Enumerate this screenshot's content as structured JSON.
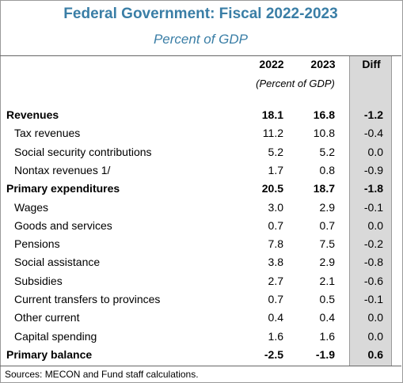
{
  "title": "Federal Government: Fiscal 2022-2023",
  "subtitle": "Percent of GDP",
  "columns": {
    "y2022": "2022",
    "y2023": "2023",
    "diff": "Diff"
  },
  "unit_note": "(Percent of GDP)",
  "rows": [
    {
      "label": "Revenues",
      "v2022": "18.1",
      "v2023": "16.8",
      "diff": "-1.2",
      "bold": true
    },
    {
      "label": "Tax revenues",
      "v2022": "11.2",
      "v2023": "10.8",
      "diff": "-0.4",
      "bold": false
    },
    {
      "label": "Social security contributions",
      "v2022": "5.2",
      "v2023": "5.2",
      "diff": "0.0",
      "bold": false
    },
    {
      "label": "Nontax revenues 1/",
      "v2022": "1.7",
      "v2023": "0.8",
      "diff": "-0.9",
      "bold": false
    },
    {
      "label": "Primary expenditures",
      "v2022": "20.5",
      "v2023": "18.7",
      "diff": "-1.8",
      "bold": true
    },
    {
      "label": "Wages",
      "v2022": "3.0",
      "v2023": "2.9",
      "diff": "-0.1",
      "bold": false
    },
    {
      "label": "Goods and services",
      "v2022": "0.7",
      "v2023": "0.7",
      "diff": "0.0",
      "bold": false
    },
    {
      "label": "Pensions",
      "v2022": "7.8",
      "v2023": "7.5",
      "diff": "-0.2",
      "bold": false
    },
    {
      "label": "Social assistance",
      "v2022": "3.8",
      "v2023": "2.9",
      "diff": "-0.8",
      "bold": false
    },
    {
      "label": "Subsidies",
      "v2022": "2.7",
      "v2023": "2.1",
      "diff": "-0.6",
      "bold": false
    },
    {
      "label": "Current transfers to provinces",
      "v2022": "0.7",
      "v2023": "0.5",
      "diff": "-0.1",
      "bold": false
    },
    {
      "label": "Other current",
      "v2022": "0.4",
      "v2023": "0.4",
      "diff": "0.0",
      "bold": false
    },
    {
      "label": "Capital spending",
      "v2022": "1.6",
      "v2023": "1.6",
      "diff": "0.0",
      "bold": false
    },
    {
      "label": "Primary balance",
      "v2022": "-2.5",
      "v2023": "-1.9",
      "diff": "0.6",
      "bold": true
    }
  ],
  "source": "Sources: MECON and Fund staff calculations.",
  "colors": {
    "title": "#3a7ea6",
    "diff_shade": "#d9d9d9"
  }
}
